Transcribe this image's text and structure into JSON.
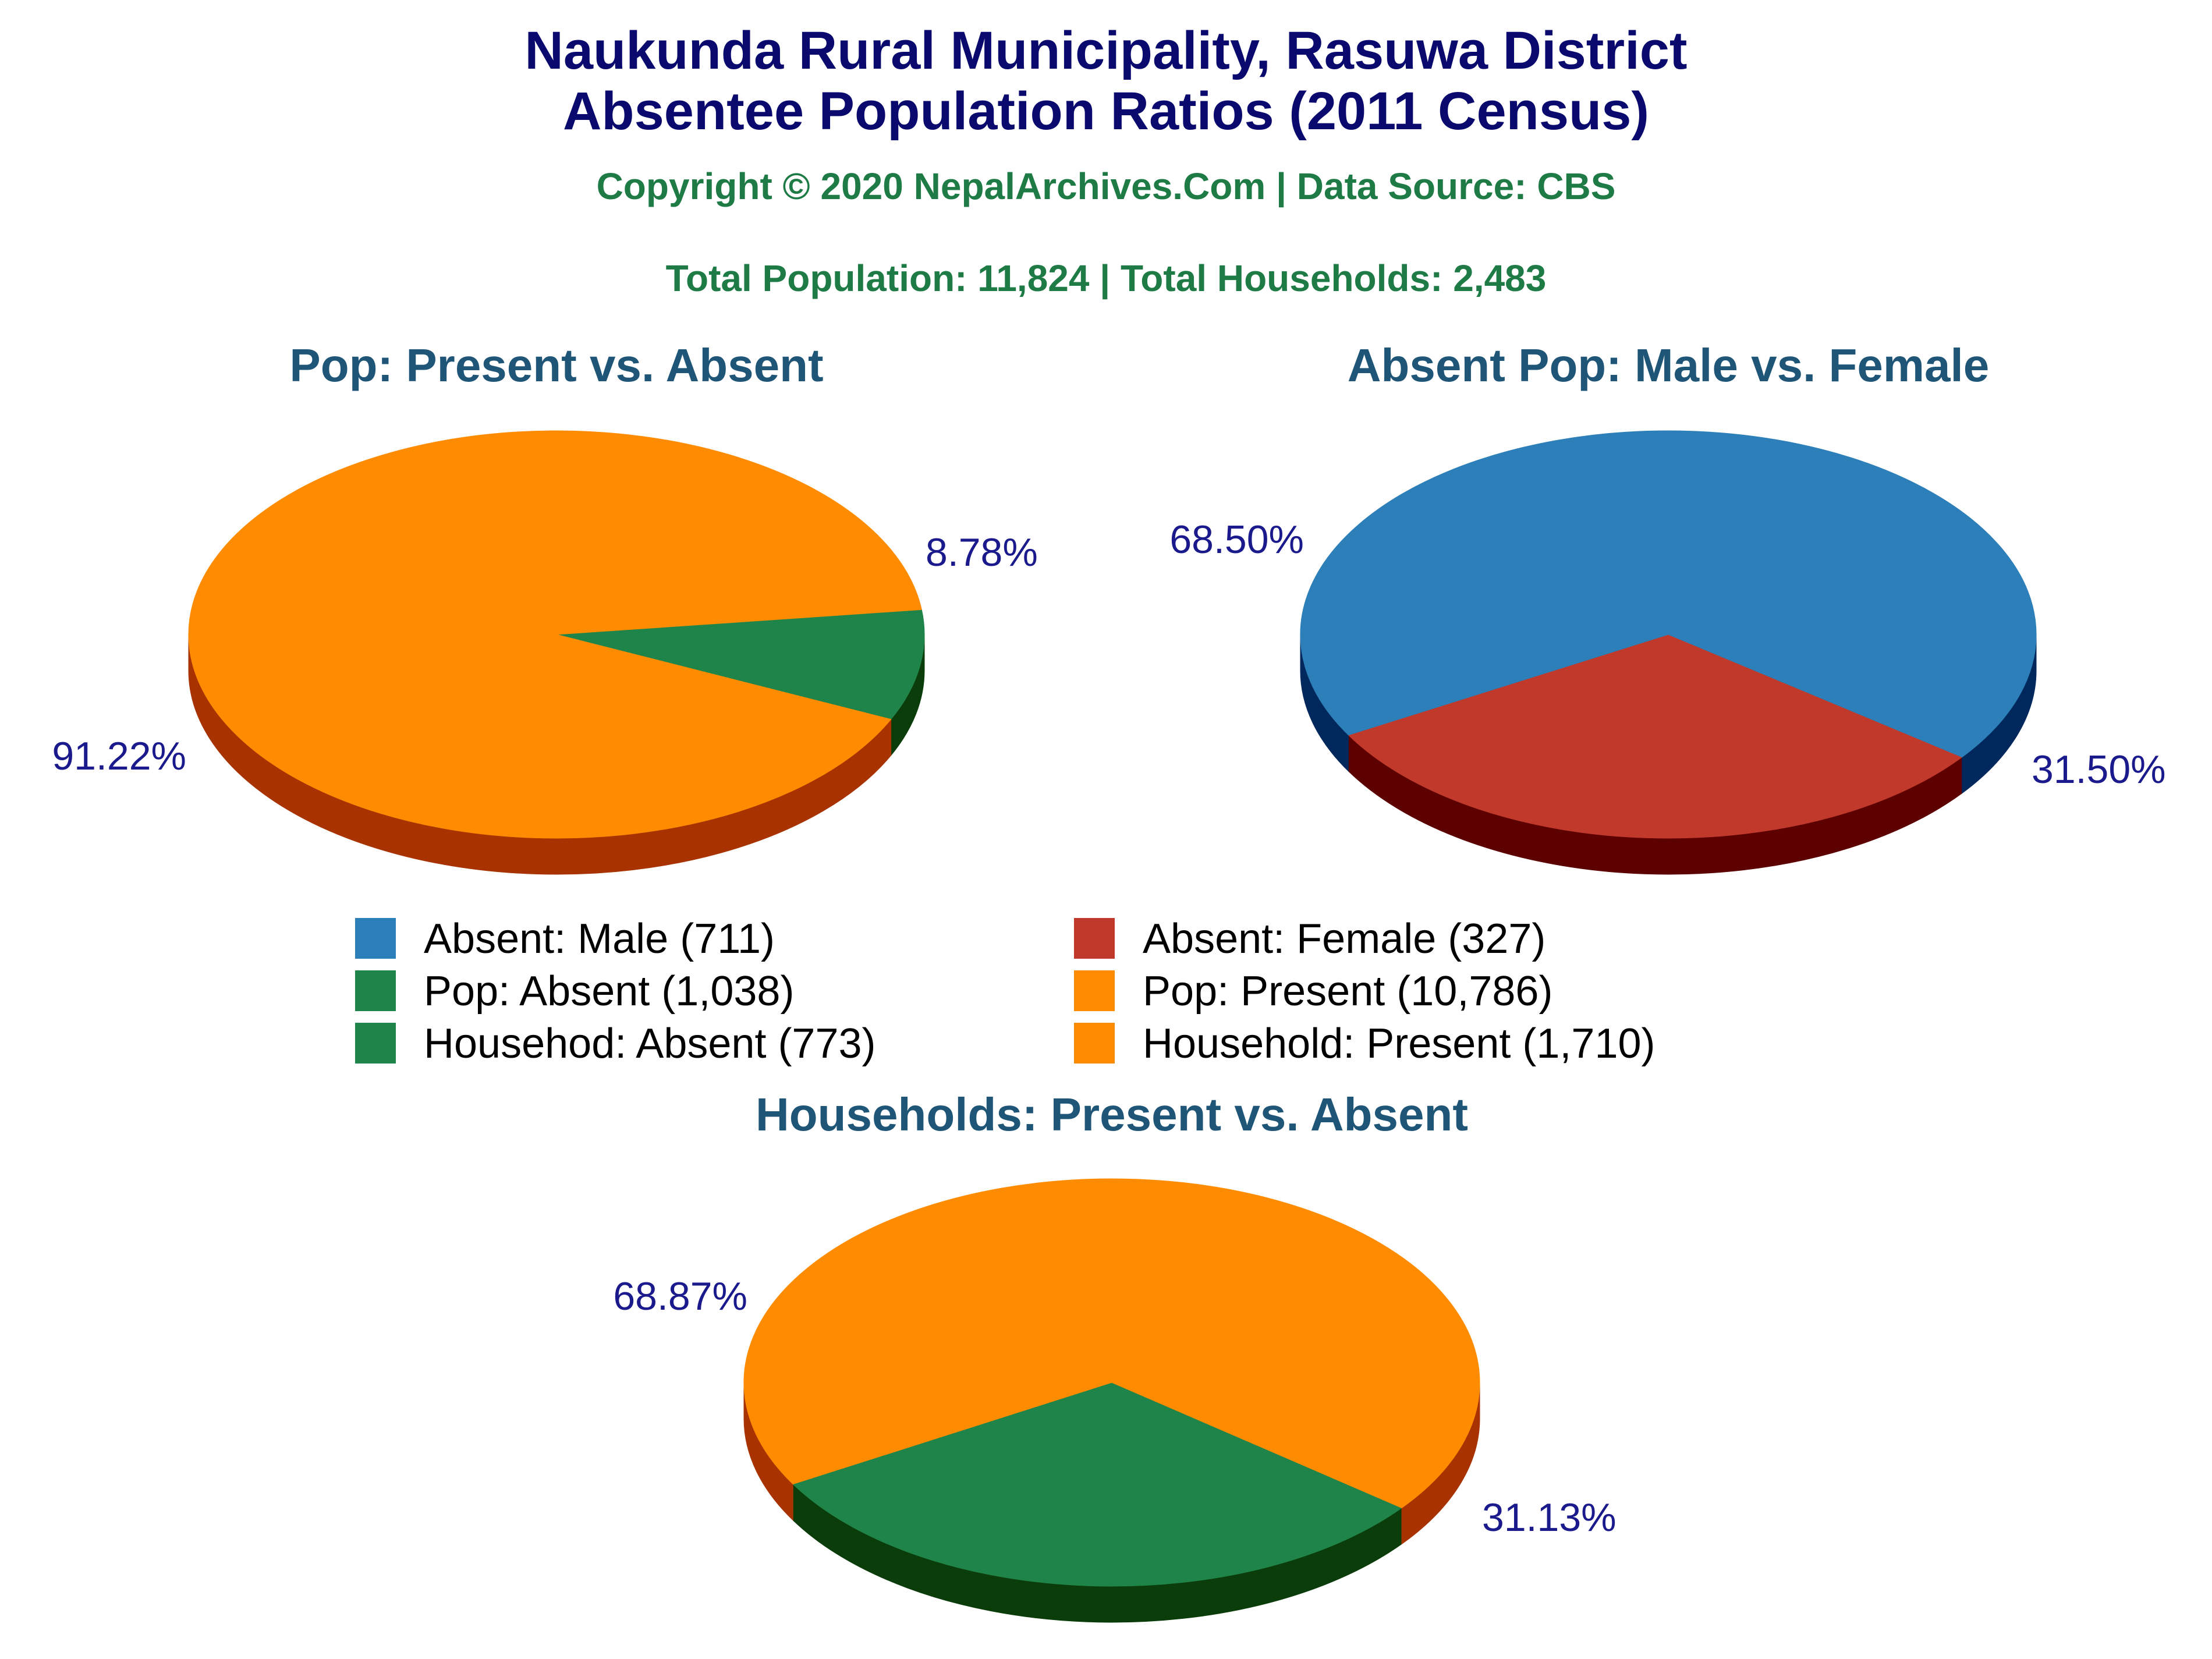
{
  "header": {
    "title_line1": "Naukunda Rural Municipality, Rasuwa District",
    "title_line2": "Absentee Population Ratios (2011 Census)",
    "copyright": "Copyright © 2020 NepalArchives.Com | Data Source: CBS",
    "totals": "Total Population: 11,824 | Total Households: 2,483"
  },
  "colors": {
    "title": "#0a0a6e",
    "subtitle": "#1e7b45",
    "panel_title": "#1f5577",
    "pct_label": "#1a1a8c",
    "orange": "#ff8c00",
    "orange_side": "#a83200",
    "green": "#1f8449",
    "green_side": "#0b3d0b",
    "blue": "#2c7fb8",
    "blue_side": "#00285c",
    "red": "#c0392b",
    "red_side": "#5c0000"
  },
  "legend": [
    {
      "label": "Absent: Male (711)",
      "color": "#2c7fb8"
    },
    {
      "label": "Absent: Female (327)",
      "color": "#c0392b"
    },
    {
      "label": "Pop: Absent (1,038)",
      "color": "#1f8449"
    },
    {
      "label": "Pop: Present (10,786)",
      "color": "#ff8c00"
    },
    {
      "label": "Househod: Absent (773)",
      "color": "#1f8449"
    },
    {
      "label": "Household: Present (1,710)",
      "color": "#ff8c00"
    }
  ],
  "chart_data": [
    {
      "type": "pie",
      "title": "Pop: Present vs. Absent",
      "slices": [
        {
          "name": "Pop: Absent",
          "value": 1038,
          "label": "8.78%",
          "color": "#1f8449",
          "side": "#0b3d0b"
        },
        {
          "name": "Pop: Present",
          "value": 10786,
          "label": "91.22%",
          "color": "#ff8c00",
          "side": "#a83200"
        }
      ]
    },
    {
      "type": "pie",
      "title": "Absent Pop: Male vs. Female",
      "slices": [
        {
          "name": "Absent: Female",
          "value": 327,
          "label": "31.50%",
          "color": "#c0392b",
          "side": "#5c0000"
        },
        {
          "name": "Absent: Male",
          "value": 711,
          "label": "68.50%",
          "color": "#2c7fb8",
          "side": "#00285c"
        }
      ]
    },
    {
      "type": "pie",
      "title": "Households: Present vs. Absent",
      "slices": [
        {
          "name": "Household: Absent",
          "value": 773,
          "label": "31.13%",
          "color": "#1f8449",
          "side": "#0b3d0b"
        },
        {
          "name": "Household: Present",
          "value": 1710,
          "label": "68.87%",
          "color": "#ff8c00",
          "side": "#a83200"
        }
      ]
    }
  ]
}
